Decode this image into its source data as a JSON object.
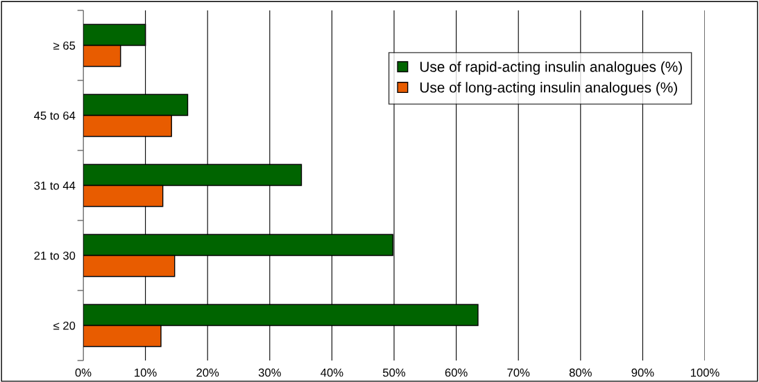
{
  "chart_data": {
    "type": "bar",
    "orientation": "horizontal",
    "categories": [
      "≥ 65",
      "45 to 64",
      "31 to 44",
      "21 to 30",
      "≤ 20"
    ],
    "series": [
      {
        "name": "Use of rapid-acting insulin analogues (%)",
        "color": "#006400",
        "values": [
          10.0,
          16.8,
          35.1,
          49.8,
          63.5
        ]
      },
      {
        "name": "Use of long-acting insulin analogues (%)",
        "color": "#e85c00",
        "values": [
          6.0,
          14.2,
          12.8,
          14.7,
          12.5
        ]
      }
    ],
    "xlim": [
      0,
      100
    ],
    "xticks": [
      {
        "value": 0,
        "label": "0%"
      },
      {
        "value": 10,
        "label": "10%"
      },
      {
        "value": 20,
        "label": "20%"
      },
      {
        "value": 30,
        "label": "30%"
      },
      {
        "value": 40,
        "label": "40%"
      },
      {
        "value": 50,
        "label": "50%"
      },
      {
        "value": 60,
        "label": "60%"
      },
      {
        "value": 70,
        "label": "70%"
      },
      {
        "value": 80,
        "label": "80%"
      },
      {
        "value": 90,
        "label": "90%"
      },
      {
        "value": 100,
        "label": "100%"
      }
    ],
    "grid": "x",
    "legend": "top right"
  }
}
